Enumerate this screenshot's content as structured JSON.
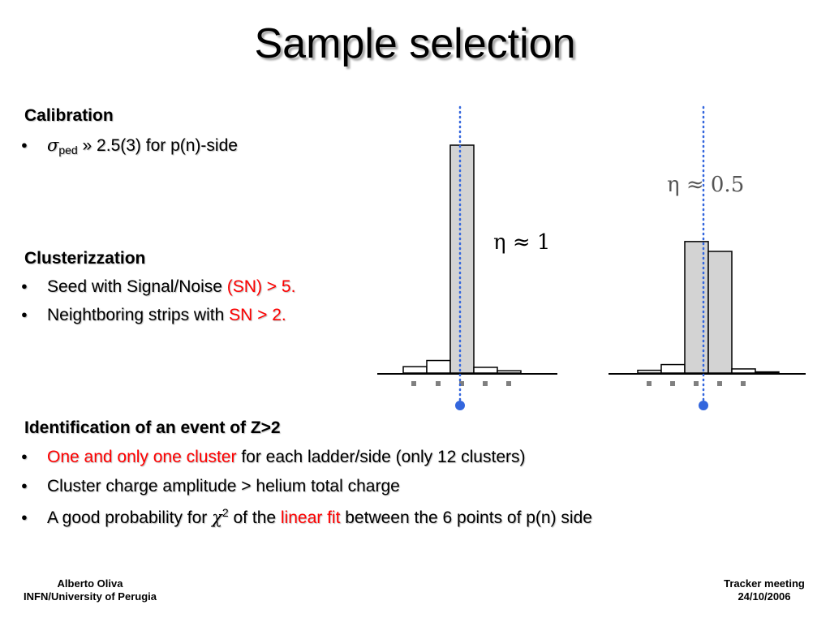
{
  "title": "Sample selection",
  "calibration": {
    "heading": "Calibration",
    "sigma_symbol": "σ",
    "sigma_sub": "ped",
    "item_rest": " » 2.5(3) for p(n)-side"
  },
  "clusterization": {
    "heading": "Clusterizzation",
    "item1_prefix": "Seed with Signal/Noise ",
    "item1_red": "(SN) > 5.",
    "item2_prefix": "Neightboring strips with ",
    "item2_red": "SN > 2."
  },
  "identification": {
    "heading": "Identification of an event of Z>2",
    "item1_red": "One and only one cluster",
    "item1_rest": " for each ladder/side (only 12 clusters)",
    "item2": "Cluster charge amplitude > helium total charge",
    "item3_prefix": "A good probability for ",
    "item3_chi": "χ",
    "item3_sup": "2",
    "item3_mid": " of the ",
    "item3_red": "linear fit",
    "item3_rest": " between the 6 points of p(n) side"
  },
  "figure": {
    "left_label": "η ≈ 1",
    "right_label": "η ≈ 0.5",
    "left_strip_values": [
      0.028,
      0.055,
      1.0,
      0.025,
      0.01
    ],
    "right_strip_values": [
      0.012,
      0.037,
      0.575,
      0.532,
      0.018,
      0.005
    ],
    "bar_fill": "#d3d3d3",
    "marker_color": "#3366dd"
  },
  "footer": {
    "left_line1": "Alberto Oliva",
    "left_line2": "INFN/University of Perugia",
    "right_line1": "Tracker meeting",
    "right_line2": "24/10/2006"
  }
}
